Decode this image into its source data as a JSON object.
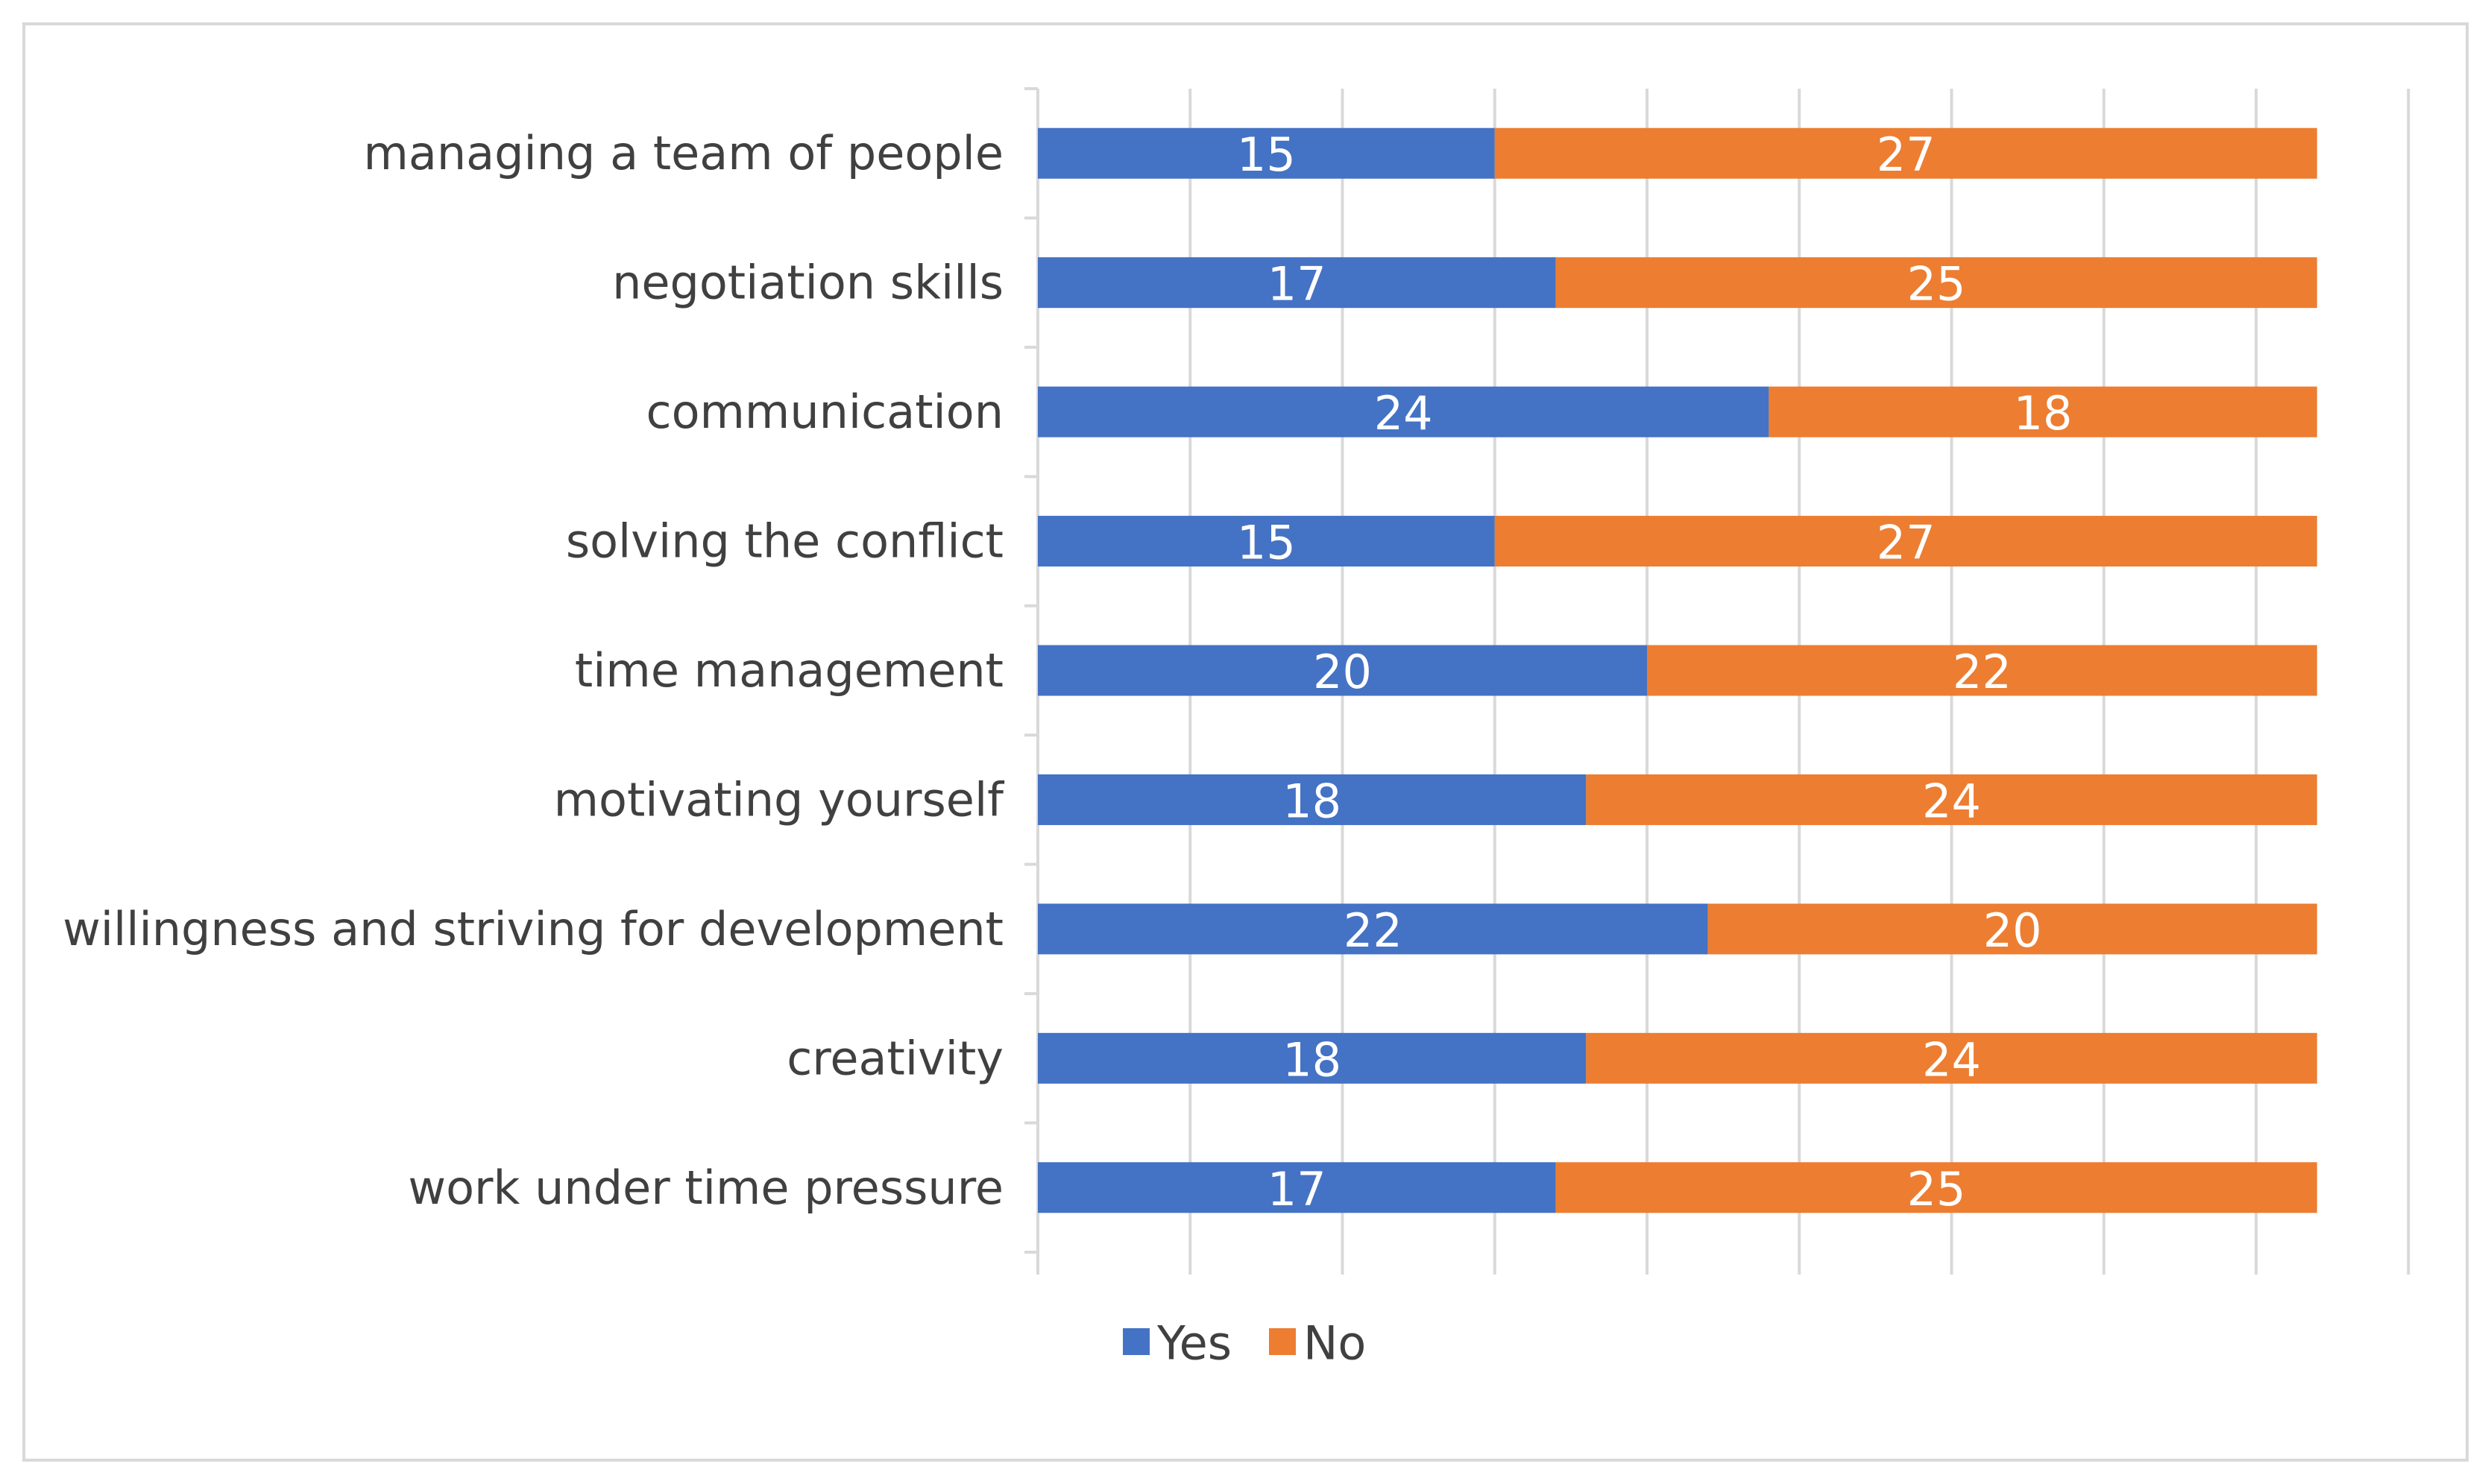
{
  "chart_data": {
    "type": "bar",
    "orientation": "horizontal",
    "stacked": true,
    "categories": [
      "managing a team of people",
      "negotiation skills",
      "communication",
      "solving the conflict",
      "time management",
      "motivating yourself",
      "willingness and striving for development",
      "creativity",
      "work under time pressure"
    ],
    "series": [
      {
        "name": "Yes",
        "color": "#4472c4",
        "values": [
          15,
          17,
          24,
          15,
          20,
          18,
          22,
          18,
          17
        ]
      },
      {
        "name": "No",
        "color": "#ed7d31",
        "values": [
          27,
          25,
          18,
          27,
          22,
          24,
          20,
          24,
          25
        ]
      }
    ],
    "title": "",
    "xlabel": "",
    "ylabel": "",
    "xlim": [
      0,
      45
    ],
    "x_gridline_step": 5,
    "grid": true,
    "data_labels": true,
    "legend_position": "bottom"
  }
}
